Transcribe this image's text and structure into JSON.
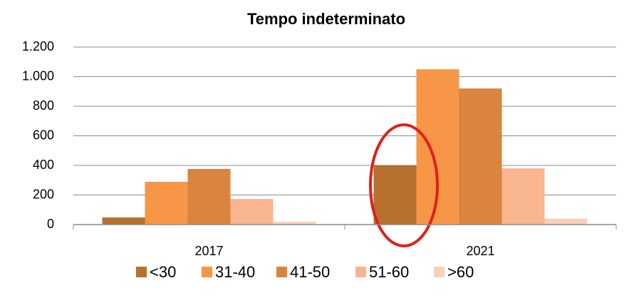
{
  "chart_data": {
    "type": "bar",
    "title": "Tempo indeterminato",
    "categories": [
      "2017",
      "2021"
    ],
    "series": [
      {
        "name": "<30",
        "color": "#b8702f",
        "values": [
          48,
          400
        ]
      },
      {
        "name": "31-40",
        "color": "#f79646",
        "values": [
          289,
          1050
        ]
      },
      {
        "name": "41-50",
        "color": "#d9843f",
        "values": [
          376,
          920
        ]
      },
      {
        "name": "51-60",
        "color": "#f9b58f",
        "values": [
          173,
          380
        ]
      },
      {
        "name": ">60",
        "color": "#fbd0b5",
        "values": [
          19,
          40
        ]
      }
    ],
    "ylim": [
      0,
      1200
    ],
    "yticks": [
      0,
      200,
      400,
      600,
      800,
      {
        "value": 1000,
        "label": "1.000"
      },
      {
        "value": 1200,
        "label": "1.200"
      }
    ],
    "grid": true,
    "legend": "bottom"
  }
}
